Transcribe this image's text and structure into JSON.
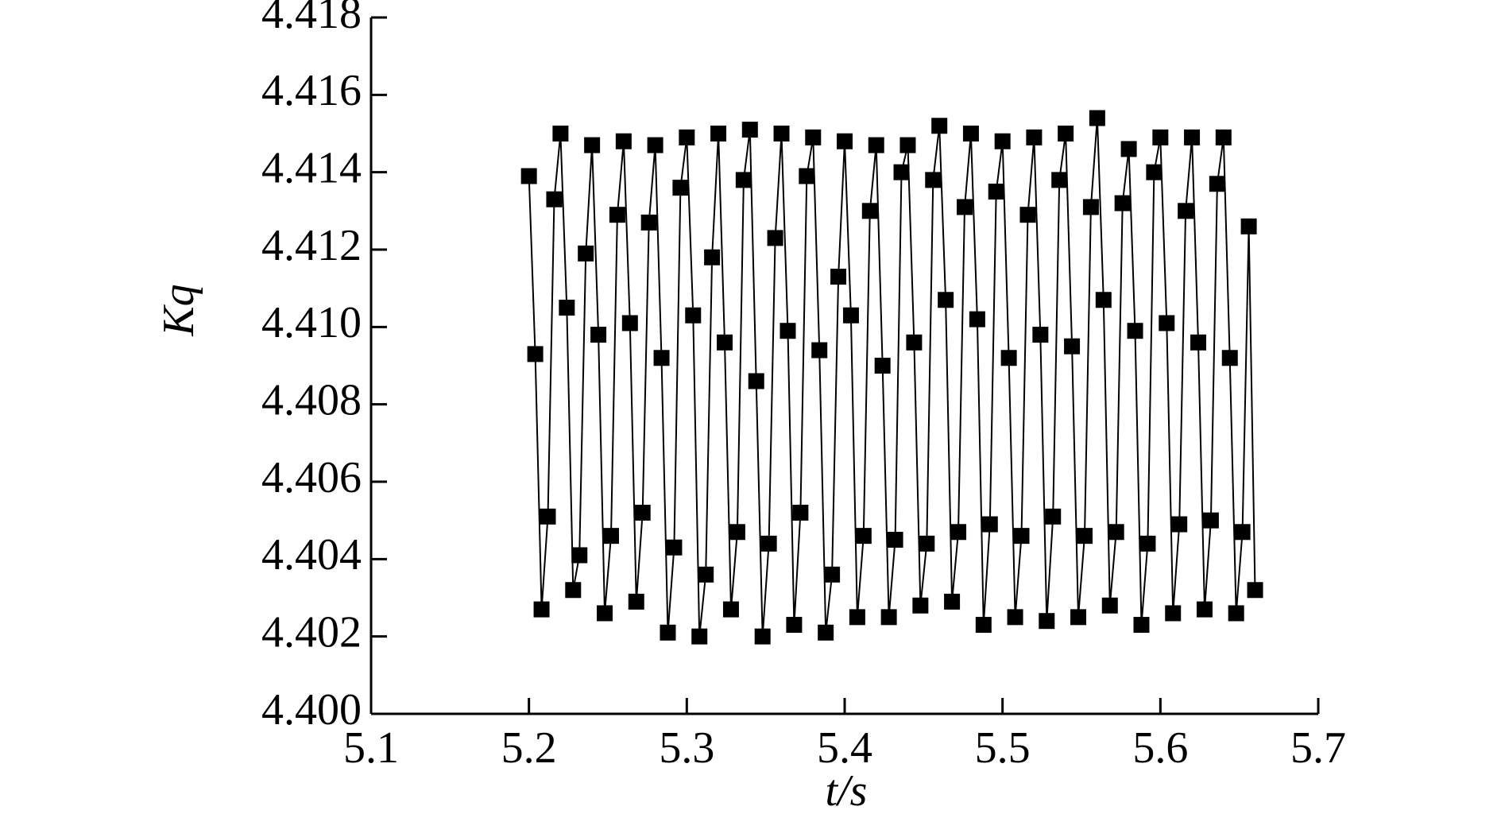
{
  "chart_data": {
    "type": "line",
    "xlabel": "t/s",
    "ylabel": "Kq",
    "color": "#000000",
    "marker": "square",
    "x": [
      5.2,
      5.204,
      5.208,
      5.212,
      5.216,
      5.22,
      5.224,
      5.228,
      5.232,
      5.236,
      5.24,
      5.244,
      5.248,
      5.252,
      5.256,
      5.26,
      5.264,
      5.268,
      5.272,
      5.276,
      5.28,
      5.284,
      5.288,
      5.292,
      5.296,
      5.3,
      5.304,
      5.308,
      5.312,
      5.316,
      5.32,
      5.324,
      5.328,
      5.332,
      5.336,
      5.34,
      5.344,
      5.348,
      5.352,
      5.356,
      5.36,
      5.364,
      5.368,
      5.372,
      5.376,
      5.38,
      5.384,
      5.388,
      5.392,
      5.396,
      5.4,
      5.404,
      5.408,
      5.412,
      5.416,
      5.42,
      5.424,
      5.428,
      5.432,
      5.436,
      5.44,
      5.444,
      5.448,
      5.452,
      5.456,
      5.46,
      5.464,
      5.468,
      5.472,
      5.476,
      5.48,
      5.484,
      5.488,
      5.492,
      5.496,
      5.5,
      5.504,
      5.508,
      5.512,
      5.516,
      5.52,
      5.524,
      5.528,
      5.532,
      5.536,
      5.54,
      5.544,
      5.548,
      5.552,
      5.556,
      5.56,
      5.564,
      5.568,
      5.572,
      5.576,
      5.58,
      5.584,
      5.588,
      5.592,
      5.596,
      5.6,
      5.604,
      5.608,
      5.612,
      5.616,
      5.62,
      5.624,
      5.628,
      5.632,
      5.636,
      5.64,
      5.644,
      5.648,
      5.652,
      5.656,
      5.66
    ],
    "values": [
      4.4139,
      4.4093,
      4.4027,
      4.4051,
      4.4133,
      4.415,
      4.4105,
      4.4032,
      4.4041,
      4.4119,
      4.4147,
      4.4098,
      4.4026,
      4.4046,
      4.4129,
      4.4148,
      4.4101,
      4.4029,
      4.4052,
      4.4127,
      4.4147,
      4.4092,
      4.4021,
      4.4043,
      4.4136,
      4.4149,
      4.4103,
      4.402,
      4.4036,
      4.4118,
      4.415,
      4.4096,
      4.4027,
      4.4047,
      4.4138,
      4.4151,
      4.4086,
      4.402,
      4.4044,
      4.4123,
      4.415,
      4.4099,
      4.4023,
      4.4052,
      4.4139,
      4.4149,
      4.4094,
      4.4021,
      4.4036,
      4.4113,
      4.4148,
      4.4103,
      4.4025,
      4.4046,
      4.413,
      4.4147,
      4.409,
      4.4025,
      4.4045,
      4.414,
      4.4147,
      4.4096,
      4.4028,
      4.4044,
      4.4138,
      4.4152,
      4.4107,
      4.4029,
      4.4047,
      4.4131,
      4.415,
      4.4102,
      4.4023,
      4.4049,
      4.4135,
      4.4148,
      4.4092,
      4.4025,
      4.4046,
      4.4129,
      4.4149,
      4.4098,
      4.4024,
      4.4051,
      4.4138,
      4.415,
      4.4095,
      4.4025,
      4.4046,
      4.4131,
      4.4154,
      4.4107,
      4.4028,
      4.4047,
      4.4132,
      4.4146,
      4.4099,
      4.4023,
      4.4044,
      4.414,
      4.4149,
      4.4101,
      4.4026,
      4.4049,
      4.413,
      4.4149,
      4.4096,
      4.4027,
      4.405,
      4.4137,
      4.4149,
      4.4092,
      4.4026,
      4.4047,
      4.4126,
      4.4032
    ],
    "xlim": [
      5.1,
      5.7
    ],
    "ylim": [
      4.4,
      4.418
    ],
    "xticks": [
      5.1,
      5.2,
      5.3,
      5.4,
      5.5,
      5.6,
      5.7
    ],
    "yticks": [
      {
        "value": 4.4,
        "label": "4.400"
      },
      4.402,
      4.404,
      4.406,
      4.408,
      {
        "value": 4.41,
        "label": "4.410"
      },
      4.412,
      4.414,
      4.416,
      4.418
    ]
  }
}
